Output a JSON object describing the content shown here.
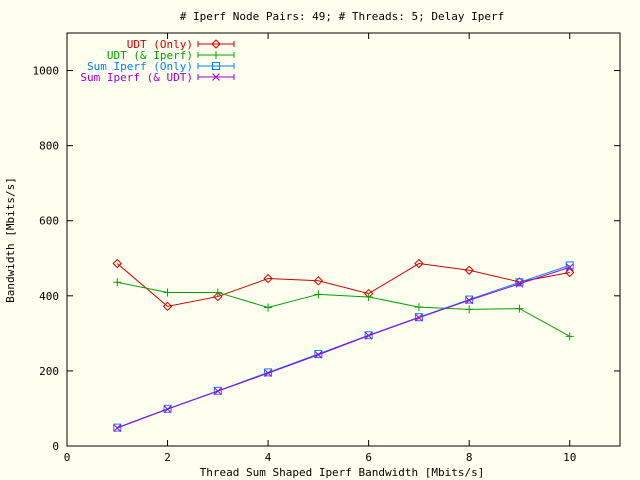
{
  "chart_data": {
    "type": "line",
    "title": "# Iperf Node Pairs: 49; # Threads: 5; Delay Iperf",
    "xlabel": "Thread Sum Shaped Iperf Bandwidth [Mbits/s]",
    "ylabel": "Bandwidth [Mbits/s]",
    "xlim": [
      0,
      11
    ],
    "ylim": [
      0,
      1100
    ],
    "xticks": [
      0,
      2,
      4,
      6,
      8,
      10
    ],
    "yticks": [
      0,
      200,
      400,
      600,
      800,
      1000
    ],
    "grid": false,
    "legend_position": "top-left",
    "x": [
      1,
      2,
      3,
      4,
      5,
      6,
      7,
      8,
      9,
      10
    ],
    "series": [
      {
        "name": "UDT (Only)",
        "color": "#cc0000",
        "marker": "diamond",
        "values": [
          486,
          372,
          398,
          446,
          440,
          406,
          486,
          468,
          437,
          462
        ]
      },
      {
        "name": "UDT (& Iperf)",
        "color": "#00a000",
        "marker": "plus",
        "values": [
          436,
          409,
          409,
          369,
          404,
          397,
          370,
          364,
          366,
          292
        ]
      },
      {
        "name": "Sum Iperf (Only)",
        "color": "#0080ff",
        "marker": "square",
        "values": [
          49,
          99,
          147,
          196,
          245,
          295,
          343,
          390,
          436,
          481
        ]
      },
      {
        "name": "Sum Iperf (& UDT)",
        "color": "#a000d0",
        "marker": "x",
        "values": [
          48,
          98,
          146,
          194,
          243,
          294,
          342,
          388,
          432,
          476
        ]
      }
    ]
  }
}
